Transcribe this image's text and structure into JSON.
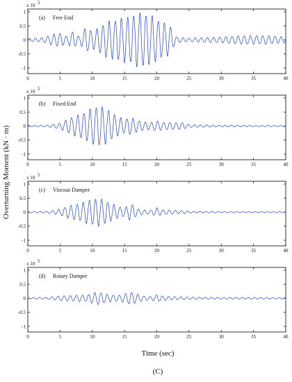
{
  "chart_data": {
    "type": "line",
    "ylabel": "Overturning Moment (kN · m)",
    "xlabel": "Time (sec)",
    "caption": "(C)",
    "scale_label": "x 10",
    "scale_exponent": "5",
    "xlim": [
      0,
      40
    ],
    "ylim": [
      -1.2,
      1.1
    ],
    "x_ticks": [
      0,
      5,
      10,
      15,
      20,
      25,
      30,
      35,
      40
    ],
    "y_ticks": [
      1,
      0.5,
      0,
      -0.5,
      -1
    ],
    "y_tick_labels": [
      "1",
      "0.5",
      "0",
      "-0.5",
      "-1"
    ],
    "line_color": "#1f3fd6",
    "panels": [
      {
        "label": "(a)",
        "title": "Free End",
        "envelope": [
          [
            0,
            0.05
          ],
          [
            2,
            0.06
          ],
          [
            4,
            0.2
          ],
          [
            5,
            0.25
          ],
          [
            6,
            0.12
          ],
          [
            7,
            0.3
          ],
          [
            8,
            0.1
          ],
          [
            9,
            0.45
          ],
          [
            10,
            0.3
          ],
          [
            11,
            0.42
          ],
          [
            12,
            0.6
          ],
          [
            14,
            0.72
          ],
          [
            16,
            0.82
          ],
          [
            17,
            0.92
          ],
          [
            18,
            0.92
          ],
          [
            19,
            0.85
          ],
          [
            20,
            0.72
          ],
          [
            21,
            0.6
          ],
          [
            22,
            0.52
          ],
          [
            22.5,
            0.3
          ],
          [
            23,
            0.1
          ],
          [
            25,
            0.06
          ],
          [
            30,
            0.1
          ],
          [
            33,
            0.15
          ],
          [
            35,
            0.15
          ],
          [
            37,
            0.15
          ],
          [
            39,
            0.12
          ],
          [
            40,
            0.1
          ]
        ]
      },
      {
        "label": "(b)",
        "title": "Fixed End",
        "envelope": [
          [
            0,
            0.02
          ],
          [
            3,
            0.03
          ],
          [
            5,
            0.1
          ],
          [
            6,
            0.22
          ],
          [
            7,
            0.32
          ],
          [
            8,
            0.4
          ],
          [
            9,
            0.5
          ],
          [
            10,
            0.62
          ],
          [
            11,
            0.7
          ],
          [
            12,
            0.62
          ],
          [
            13,
            0.48
          ],
          [
            14,
            0.32
          ],
          [
            15,
            0.25
          ],
          [
            16,
            0.3
          ],
          [
            17,
            0.2
          ],
          [
            18,
            0.15
          ],
          [
            19,
            0.12
          ],
          [
            20,
            0.18
          ],
          [
            21,
            0.12
          ],
          [
            22,
            0.13
          ],
          [
            23,
            0.11
          ],
          [
            24,
            0.12
          ],
          [
            25,
            0.05
          ],
          [
            30,
            0.03
          ],
          [
            40,
            0.02
          ]
        ]
      },
      {
        "label": "(c)",
        "title": "Viscous Damper",
        "envelope": [
          [
            0,
            0.02
          ],
          [
            3,
            0.03
          ],
          [
            5,
            0.1
          ],
          [
            6,
            0.2
          ],
          [
            7,
            0.25
          ],
          [
            8,
            0.3
          ],
          [
            9,
            0.38
          ],
          [
            10,
            0.45
          ],
          [
            11,
            0.48
          ],
          [
            12,
            0.4
          ],
          [
            13,
            0.3
          ],
          [
            14,
            0.2
          ],
          [
            15,
            0.15
          ],
          [
            16,
            0.3
          ],
          [
            17,
            0.12
          ],
          [
            18,
            0.08
          ],
          [
            19,
            0.06
          ],
          [
            20,
            0.15
          ],
          [
            21,
            0.08
          ],
          [
            22,
            0.07
          ],
          [
            24,
            0.05
          ],
          [
            26,
            0.03
          ],
          [
            30,
            0.02
          ],
          [
            40,
            0.02
          ]
        ]
      },
      {
        "label": "(d)",
        "title": "Rotary Damper",
        "envelope": [
          [
            0,
            0.02
          ],
          [
            3,
            0.03
          ],
          [
            5,
            0.08
          ],
          [
            7,
            0.1
          ],
          [
            8,
            0.12
          ],
          [
            9,
            0.1
          ],
          [
            10,
            0.18
          ],
          [
            11,
            0.22
          ],
          [
            12,
            0.15
          ],
          [
            13,
            0.12
          ],
          [
            14,
            0.1
          ],
          [
            15,
            0.15
          ],
          [
            16,
            0.22
          ],
          [
            17,
            0.15
          ],
          [
            18,
            0.08
          ],
          [
            19,
            0.06
          ],
          [
            20,
            0.12
          ],
          [
            21,
            0.08
          ],
          [
            22,
            0.06
          ],
          [
            24,
            0.05
          ],
          [
            26,
            0.04
          ],
          [
            30,
            0.03
          ],
          [
            35,
            0.03
          ],
          [
            40,
            0.02
          ]
        ]
      }
    ]
  }
}
